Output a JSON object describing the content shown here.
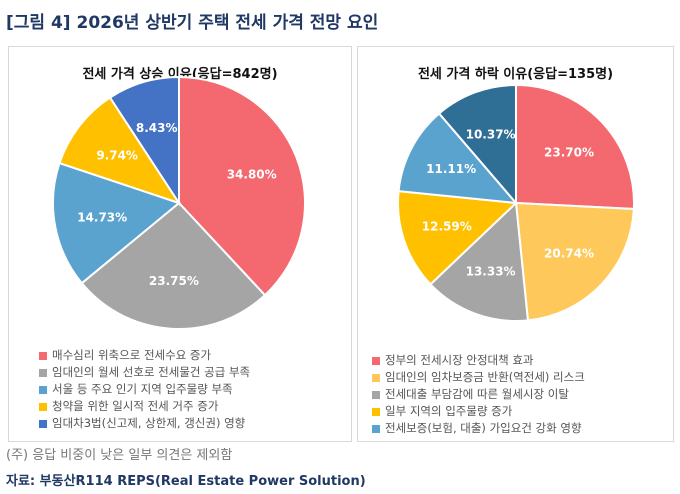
{
  "title": "[그림 4] 2026년 상반기 주택 전세 가격 전망 요인",
  "footnote": "(주) 응답 비중이 낮은 일부 의견은 제외함",
  "source": "자료: 부동산R114 REPS(Real Estate Power Solution)",
  "chart_data": [
    {
      "type": "pie",
      "title": "전세 가격 상승 이유(응답=842명)",
      "unit": "%",
      "start": "12 o'clock, clockwise",
      "slices": [
        {
          "label": "매수심리 위축으로 전세수요 증가",
          "value": 34.8,
          "text": "34.80%",
          "color": "#f4686f"
        },
        {
          "label": "임대인의 월세 선호로 전세물건 공급 부족",
          "value": 23.75,
          "text": "23.75%",
          "color": "#a5a5a5"
        },
        {
          "label": "서울 등 주요 인기 지역 입주물량 부족",
          "value": 14.73,
          "text": "14.73%",
          "color": "#5ba3cf"
        },
        {
          "label": "청약을 위한 일시적 전세 거주 증가",
          "value": 9.74,
          "text": "9.74%",
          "color": "#ffc000"
        },
        {
          "label": "임대차3법(신고제, 상한제, 갱신권) 영향",
          "value": 8.43,
          "text": "8.43%",
          "color": "#4472c4"
        }
      ]
    },
    {
      "type": "pie",
      "title": "전세 가격 하락 이유(응답=135명)",
      "unit": "%",
      "start": "12 o'clock, clockwise",
      "slices": [
        {
          "label": "정부의 전세시장 안정대책 효과",
          "value": 23.7,
          "text": "23.70%",
          "color": "#f4686f"
        },
        {
          "label": "임대인의 임차보증금 반환(역전세) 리스크",
          "value": 20.74,
          "text": "20.74%",
          "color": "#ffc85a"
        },
        {
          "label": "전세대출 부담감에 따른 월세시장 이탈",
          "value": 13.33,
          "text": "13.33%",
          "color": "#a5a5a5"
        },
        {
          "label": "일부 지역의 입주물량 증가",
          "value": 12.59,
          "text": "12.59%",
          "color": "#ffc000"
        },
        {
          "label": "전세보증(보험, 대출) 가입요건 강화 영향",
          "value": 11.11,
          "text": "11.11%",
          "color": "#5ba3cf"
        },
        {
          "label": "",
          "value": 10.37,
          "text": "10.37%",
          "color": "#2f6f96"
        }
      ]
    }
  ]
}
